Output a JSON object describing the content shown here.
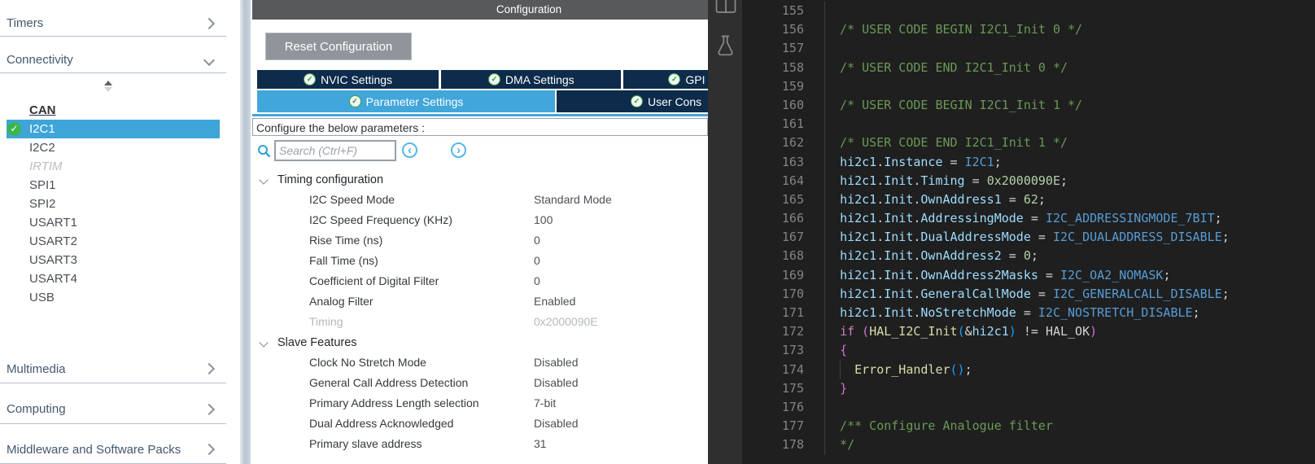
{
  "colors": {
    "accent_blue": "#41a6d9",
    "navy_tab": "#0d2b4a",
    "selected_row_blue": "#3ea5d9",
    "title_bar_gray": "#58595b",
    "check_green": "#3cb54d",
    "editor_bg": "#1f1f1f",
    "comment_green": "#6a9955",
    "variable_blue": "#9cdcfe",
    "constant_blue": "#569cd6",
    "number_green": "#b5cea8",
    "keyword_magenta": "#c586c0",
    "function_yellow": "#dcdcaa"
  },
  "sidebar": {
    "sections_top": [
      {
        "label": "Timers",
        "chevron": "right"
      },
      {
        "label": "Connectivity",
        "chevron": "down"
      }
    ],
    "items": [
      {
        "label": "CAN",
        "style": "active-bold"
      },
      {
        "label": "I2C1",
        "selected": true,
        "checked": true
      },
      {
        "label": "I2C2"
      },
      {
        "label": "IRTIM",
        "style": "disabled"
      },
      {
        "label": "SPI1"
      },
      {
        "label": "SPI2"
      },
      {
        "label": "USART1"
      },
      {
        "label": "USART2"
      },
      {
        "label": "USART3"
      },
      {
        "label": "USART4"
      },
      {
        "label": "USB"
      }
    ],
    "sections_bottom": [
      {
        "label": "Multimedia",
        "chevron": "right"
      },
      {
        "label": "Computing",
        "chevron": "right"
      },
      {
        "label": "Middleware and Software Packs",
        "chevron": "right"
      }
    ]
  },
  "config": {
    "title": "Configuration",
    "reset_button_label": "Reset Configuration",
    "tabs_row1": [
      {
        "label": "NVIC Settings",
        "checked": true
      },
      {
        "label": "DMA Settings",
        "checked": true
      },
      {
        "label": "GPI",
        "checked": true,
        "cut": true
      }
    ],
    "tabs_row2": [
      {
        "label": "Parameter Settings",
        "checked": true,
        "active": true
      },
      {
        "label": "User Cons",
        "checked": true,
        "cut": true
      }
    ],
    "params_header": "Configure the below parameters :",
    "search_placeholder": "Search (Ctrl+F)",
    "nav_prev": "‹",
    "nav_next": "›",
    "param_groups": [
      {
        "label": "Timing configuration",
        "rows": [
          {
            "label": "I2C Speed Mode",
            "value": "Standard Mode"
          },
          {
            "label": "I2C Speed Frequency (KHz)",
            "value": "100"
          },
          {
            "label": "Rise Time (ns)",
            "value": "0"
          },
          {
            "label": "Fall Time (ns)",
            "value": "0"
          },
          {
            "label": "Coefficient of Digital Filter",
            "value": "0"
          },
          {
            "label": "Analog Filter",
            "value": "Enabled"
          },
          {
            "label": "Timing",
            "value": "0x2000090E",
            "disabled": true
          }
        ]
      },
      {
        "label": "Slave Features",
        "rows": [
          {
            "label": "Clock No Stretch Mode",
            "value": "Disabled"
          },
          {
            "label": "General Call Address Detection",
            "value": "Disabled"
          },
          {
            "label": "Primary Address Length selection",
            "value": "7-bit"
          },
          {
            "label": "Dual Address Acknowledged",
            "value": "Disabled"
          },
          {
            "label": "Primary slave address",
            "value": "31"
          }
        ]
      }
    ]
  },
  "activity_bar": {
    "icons": [
      "split-editor-icon",
      "flask-icon"
    ]
  },
  "editor": {
    "first_line": 155,
    "lines": [
      {
        "n": 155,
        "tokens": []
      },
      {
        "n": 156,
        "tokens": [
          {
            "c": "cm",
            "t": "  /* USER CODE BEGIN I2C1_Init 0 */"
          }
        ]
      },
      {
        "n": 157,
        "tokens": []
      },
      {
        "n": 158,
        "tokens": [
          {
            "c": "cm",
            "t": "  /* USER CODE END I2C1_Init 0 */"
          }
        ]
      },
      {
        "n": 159,
        "tokens": []
      },
      {
        "n": 160,
        "tokens": [
          {
            "c": "cm",
            "t": "  /* USER CODE BEGIN I2C1_Init 1 */"
          }
        ]
      },
      {
        "n": 161,
        "tokens": []
      },
      {
        "n": 162,
        "tokens": [
          {
            "c": "cm",
            "t": "  /* USER CODE END I2C1_Init 1 */"
          }
        ]
      },
      {
        "n": 163,
        "tokens": [
          {
            "c": "p",
            "t": "  "
          },
          {
            "c": "v",
            "t": "hi2c1"
          },
          {
            "c": "p",
            "t": "."
          },
          {
            "c": "v",
            "t": "Instance"
          },
          {
            "c": "p",
            "t": " = "
          },
          {
            "c": "t",
            "t": "I2C1"
          },
          {
            "c": "p",
            "t": ";"
          }
        ]
      },
      {
        "n": 164,
        "tokens": [
          {
            "c": "p",
            "t": "  "
          },
          {
            "c": "v",
            "t": "hi2c1"
          },
          {
            "c": "p",
            "t": "."
          },
          {
            "c": "v",
            "t": "Init"
          },
          {
            "c": "p",
            "t": "."
          },
          {
            "c": "v",
            "t": "Timing"
          },
          {
            "c": "p",
            "t": " = "
          },
          {
            "c": "n",
            "t": "0x2000090E"
          },
          {
            "c": "p",
            "t": ";"
          }
        ]
      },
      {
        "n": 165,
        "tokens": [
          {
            "c": "p",
            "t": "  "
          },
          {
            "c": "v",
            "t": "hi2c1"
          },
          {
            "c": "p",
            "t": "."
          },
          {
            "c": "v",
            "t": "Init"
          },
          {
            "c": "p",
            "t": "."
          },
          {
            "c": "v",
            "t": "OwnAddress1"
          },
          {
            "c": "p",
            "t": " = "
          },
          {
            "c": "n",
            "t": "62"
          },
          {
            "c": "p",
            "t": ";"
          }
        ]
      },
      {
        "n": 166,
        "tokens": [
          {
            "c": "p",
            "t": "  "
          },
          {
            "c": "v",
            "t": "hi2c1"
          },
          {
            "c": "p",
            "t": "."
          },
          {
            "c": "v",
            "t": "Init"
          },
          {
            "c": "p",
            "t": "."
          },
          {
            "c": "v",
            "t": "AddressingMode"
          },
          {
            "c": "p",
            "t": " = "
          },
          {
            "c": "t",
            "t": "I2C_ADDRESSINGMODE_7BIT"
          },
          {
            "c": "p",
            "t": ";"
          }
        ]
      },
      {
        "n": 167,
        "tokens": [
          {
            "c": "p",
            "t": "  "
          },
          {
            "c": "v",
            "t": "hi2c1"
          },
          {
            "c": "p",
            "t": "."
          },
          {
            "c": "v",
            "t": "Init"
          },
          {
            "c": "p",
            "t": "."
          },
          {
            "c": "v",
            "t": "DualAddressMode"
          },
          {
            "c": "p",
            "t": " = "
          },
          {
            "c": "t",
            "t": "I2C_DUALADDRESS_DISABLE"
          },
          {
            "c": "p",
            "t": ";"
          }
        ]
      },
      {
        "n": 168,
        "tokens": [
          {
            "c": "p",
            "t": "  "
          },
          {
            "c": "v",
            "t": "hi2c1"
          },
          {
            "c": "p",
            "t": "."
          },
          {
            "c": "v",
            "t": "Init"
          },
          {
            "c": "p",
            "t": "."
          },
          {
            "c": "v",
            "t": "OwnAddress2"
          },
          {
            "c": "p",
            "t": " = "
          },
          {
            "c": "n",
            "t": "0"
          },
          {
            "c": "p",
            "t": ";"
          }
        ]
      },
      {
        "n": 169,
        "tokens": [
          {
            "c": "p",
            "t": "  "
          },
          {
            "c": "v",
            "t": "hi2c1"
          },
          {
            "c": "p",
            "t": "."
          },
          {
            "c": "v",
            "t": "Init"
          },
          {
            "c": "p",
            "t": "."
          },
          {
            "c": "v",
            "t": "OwnAddress2Masks"
          },
          {
            "c": "p",
            "t": " = "
          },
          {
            "c": "t",
            "t": "I2C_OA2_NOMASK"
          },
          {
            "c": "p",
            "t": ";"
          }
        ]
      },
      {
        "n": 170,
        "tokens": [
          {
            "c": "p",
            "t": "  "
          },
          {
            "c": "v",
            "t": "hi2c1"
          },
          {
            "c": "p",
            "t": "."
          },
          {
            "c": "v",
            "t": "Init"
          },
          {
            "c": "p",
            "t": "."
          },
          {
            "c": "v",
            "t": "GeneralCallMode"
          },
          {
            "c": "p",
            "t": " = "
          },
          {
            "c": "t",
            "t": "I2C_GENERALCALL_DISABLE"
          },
          {
            "c": "p",
            "t": ";"
          }
        ]
      },
      {
        "n": 171,
        "tokens": [
          {
            "c": "p",
            "t": "  "
          },
          {
            "c": "v",
            "t": "hi2c1"
          },
          {
            "c": "p",
            "t": "."
          },
          {
            "c": "v",
            "t": "Init"
          },
          {
            "c": "p",
            "t": "."
          },
          {
            "c": "v",
            "t": "NoStretchMode"
          },
          {
            "c": "p",
            "t": " = "
          },
          {
            "c": "t",
            "t": "I2C_NOSTRETCH_DISABLE"
          },
          {
            "c": "p",
            "t": ";"
          }
        ]
      },
      {
        "n": 172,
        "tokens": [
          {
            "c": "p",
            "t": "  "
          },
          {
            "c": "k",
            "t": "if"
          },
          {
            "c": "p",
            "t": " "
          },
          {
            "c": "b1",
            "t": "("
          },
          {
            "c": "f",
            "t": "HAL_I2C_Init"
          },
          {
            "c": "b2",
            "t": "("
          },
          {
            "c": "p",
            "t": "&"
          },
          {
            "c": "v",
            "t": "hi2c1"
          },
          {
            "c": "b2",
            "t": ")"
          },
          {
            "c": "p",
            "t": " != "
          },
          {
            "c": "p",
            "t": "HAL_OK"
          },
          {
            "c": "b1",
            "t": ")"
          }
        ]
      },
      {
        "n": 173,
        "tokens": [
          {
            "c": "p",
            "t": "  "
          },
          {
            "c": "b1",
            "t": "{"
          }
        ]
      },
      {
        "n": 174,
        "tokens": [
          {
            "c": "p",
            "t": "  "
          },
          {
            "c": "gd",
            "t": ""
          },
          {
            "c": "p",
            "t": "  "
          },
          {
            "c": "f",
            "t": "Error_Handler"
          },
          {
            "c": "b2",
            "t": "()"
          },
          {
            "c": "p",
            "t": ";"
          }
        ]
      },
      {
        "n": 175,
        "tokens": [
          {
            "c": "p",
            "t": "  "
          },
          {
            "c": "b1",
            "t": "}"
          }
        ]
      },
      {
        "n": 176,
        "tokens": []
      },
      {
        "n": 177,
        "tokens": [
          {
            "c": "cm",
            "t": "  /** Configure Analogue filter"
          }
        ]
      },
      {
        "n": 178,
        "tokens": [
          {
            "c": "cm",
            "t": "  */"
          }
        ]
      }
    ]
  }
}
